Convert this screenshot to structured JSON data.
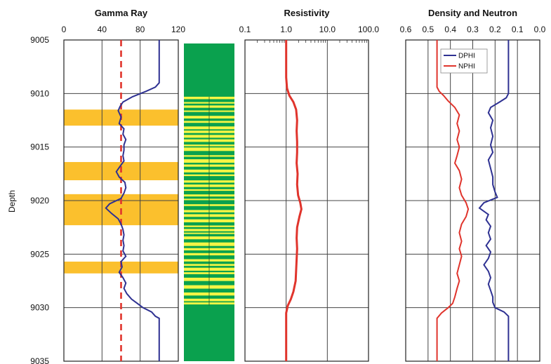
{
  "chart_data": [
    {
      "type": "line",
      "title": "Gamma Ray",
      "xlim": [
        0,
        120
      ],
      "x_ticks": [
        "0",
        "40",
        "80",
        "120"
      ],
      "y_axis": {
        "label": "Depth",
        "ylim": [
          9005,
          9035
        ],
        "ticks": [
          "9005",
          "9010",
          "9015",
          "9020",
          "9025",
          "9030",
          "9035"
        ]
      },
      "cutoff": {
        "value": 60,
        "color": "#e0342c",
        "style": "dashed"
      },
      "shaded_intervals": [
        [
          9011.5,
          9013.0
        ],
        [
          9016.4,
          9018.1
        ],
        [
          9019.4,
          9022.3
        ],
        [
          9025.7,
          9026.8
        ]
      ],
      "shade_color": "#fbc02d",
      "series": [
        {
          "color": "#2e3192",
          "depth": [
            9005.0,
            9009.0,
            9009.4,
            9009.8,
            9010.3,
            9010.8,
            9011.2,
            9011.6,
            9012.2,
            9012.8,
            9013.3,
            9013.8,
            9014.3,
            9014.8,
            9015.3,
            9015.8,
            9016.3,
            9016.8,
            9017.3,
            9017.8,
            9018.3,
            9018.8,
            9019.3,
            9019.8,
            9020.3,
            9020.7,
            9021.2,
            9021.7,
            9022.2,
            9022.7,
            9023.2,
            9023.7,
            9024.2,
            9024.7,
            9025.2,
            9025.7,
            9026.2,
            9026.7,
            9027.2,
            9027.7,
            9028.2,
            9028.7,
            9029.2,
            9029.6,
            9030.0,
            9030.4,
            9030.8,
            9031.0,
            9035.0
          ],
          "values": [
            100,
            100,
            96,
            86,
            72,
            62,
            59,
            57,
            60,
            58,
            63,
            62,
            65,
            63,
            63,
            62,
            63,
            59,
            55,
            58,
            64,
            65,
            63,
            60,
            48,
            44,
            50,
            57,
            60,
            62,
            63,
            62,
            63,
            62,
            65,
            60,
            61,
            58,
            62,
            65,
            63,
            66,
            71,
            77,
            83,
            92,
            96,
            100,
            100
          ]
        }
      ]
    },
    {
      "type": "lithology",
      "title": "",
      "ylim": [
        9005,
        9035
      ],
      "base_color": "#0aa14e",
      "band_color": "#f5f545",
      "interval": [
        9010.3,
        9029.8
      ]
    },
    {
      "type": "line",
      "title": "Resistivity",
      "scale": "log",
      "xlim": [
        0.1,
        100.0
      ],
      "x_ticks": [
        "0.1",
        "1.0",
        "10.0",
        "100.0"
      ],
      "ylim": [
        9005,
        9035
      ],
      "series": [
        {
          "color": "#e0342c",
          "depth": [
            9005.0,
            9008.5,
            9009.5,
            9010.2,
            9010.8,
            9011.5,
            9012.5,
            9013.5,
            9014.5,
            9015.5,
            9016.5,
            9017.5,
            9018.5,
            9019.5,
            9020.2,
            9020.8,
            9021.5,
            9022.5,
            9023.5,
            9024.5,
            9025.5,
            9026.5,
            9027.5,
            9028.5,
            9029.2,
            9029.8,
            9030.5,
            9031.5,
            9035.0
          ],
          "values": [
            1.0,
            1.0,
            1.05,
            1.2,
            1.5,
            1.75,
            1.85,
            1.8,
            1.85,
            1.85,
            1.8,
            1.9,
            1.85,
            1.95,
            2.2,
            2.35,
            2.1,
            1.85,
            1.8,
            1.85,
            1.8,
            1.75,
            1.7,
            1.5,
            1.3,
            1.1,
            1.0,
            1.0,
            1.0
          ]
        }
      ]
    },
    {
      "type": "line",
      "title": "Density and Neutron",
      "xlim": [
        0.6,
        0.0
      ],
      "x_ticks": [
        "0.6",
        "0.5",
        "0.4",
        "0.3",
        "0.2",
        "0.1",
        "0.0"
      ],
      "ylim": [
        9005,
        9035
      ],
      "legend": {
        "position": "top-right",
        "entries": [
          "DPHI",
          "NPHI"
        ]
      },
      "series": [
        {
          "name": "DPHI",
          "color": "#2e3192",
          "depth": [
            9005.0,
            9010.0,
            9010.4,
            9010.8,
            9011.3,
            9011.8,
            9012.5,
            9013.2,
            9014.0,
            9014.8,
            9015.5,
            9016.2,
            9017.0,
            9017.8,
            9018.5,
            9019.2,
            9019.7,
            9020.2,
            9020.7,
            9021.3,
            9021.8,
            9022.4,
            9023.0,
            9023.6,
            9024.2,
            9024.8,
            9025.4,
            9026.0,
            9026.6,
            9027.2,
            9027.8,
            9028.4,
            9029.0,
            9029.5,
            9030.0,
            9030.4,
            9030.8,
            9035.0
          ],
          "values": [
            0.14,
            0.14,
            0.15,
            0.18,
            0.22,
            0.23,
            0.21,
            0.22,
            0.21,
            0.22,
            0.21,
            0.23,
            0.22,
            0.21,
            0.21,
            0.2,
            0.19,
            0.25,
            0.27,
            0.23,
            0.24,
            0.22,
            0.23,
            0.22,
            0.24,
            0.22,
            0.23,
            0.25,
            0.23,
            0.22,
            0.23,
            0.22,
            0.21,
            0.21,
            0.2,
            0.16,
            0.14,
            0.14
          ]
        },
        {
          "name": "NPHI",
          "color": "#e0342c",
          "depth": [
            9005.0,
            9009.4,
            9009.8,
            9010.2,
            9010.7,
            9011.3,
            9012.0,
            9012.8,
            9013.5,
            9014.3,
            9015.0,
            9015.8,
            9016.5,
            9017.2,
            9018.0,
            9018.8,
            9019.5,
            9020.2,
            9020.8,
            9021.5,
            9022.2,
            9023.0,
            9023.8,
            9024.5,
            9025.2,
            9026.0,
            9026.8,
            9027.5,
            9028.2,
            9029.0,
            9029.6,
            9030.0,
            9030.5,
            9031.0,
            9035.0
          ],
          "values": [
            0.46,
            0.46,
            0.45,
            0.43,
            0.41,
            0.38,
            0.36,
            0.37,
            0.36,
            0.37,
            0.36,
            0.37,
            0.38,
            0.36,
            0.35,
            0.36,
            0.35,
            0.33,
            0.32,
            0.33,
            0.35,
            0.36,
            0.35,
            0.36,
            0.35,
            0.36,
            0.37,
            0.36,
            0.37,
            0.38,
            0.39,
            0.41,
            0.44,
            0.46,
            0.46
          ]
        }
      ]
    }
  ]
}
